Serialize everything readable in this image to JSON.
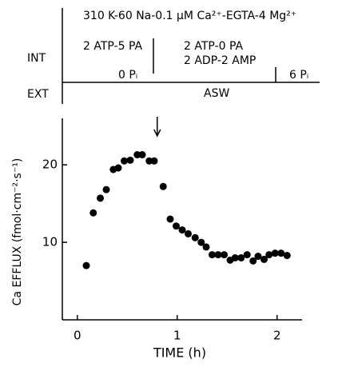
{
  "protocol": {
    "solution": "310 K-60 Na-0.1 μM Ca²⁺-EGTA-4 Mg²⁺",
    "int": "INT",
    "ext": "EXT",
    "first": "2 ATP-5 PA",
    "second": [
      "2 ATP-0 PA",
      "2 ADP-2 AMP"
    ],
    "pi_first": "0 Pᵢ",
    "pi_second": "6 Pᵢ",
    "ext_solution": "ASW"
  },
  "chart_data": {
    "type": "scatter",
    "x_label": "TIME (h)",
    "y_label": "Ca EFFLUX (fmol·cm⁻²·s⁻¹)",
    "x": [
      0.09,
      0.16,
      0.23,
      0.29,
      0.36,
      0.41,
      0.47,
      0.53,
      0.6,
      0.65,
      0.72,
      0.77,
      0.86,
      0.93,
      0.99,
      1.05,
      1.11,
      1.18,
      1.24,
      1.29,
      1.35,
      1.41,
      1.47,
      1.53,
      1.58,
      1.64,
      1.7,
      1.76,
      1.81,
      1.87,
      1.92,
      1.98,
      2.04,
      2.1
    ],
    "values": [
      7,
      13.8,
      15.7,
      16.8,
      19.4,
      19.6,
      20.5,
      20.6,
      21.3,
      21.3,
      20.5,
      20.5,
      17.2,
      13,
      12.1,
      11.6,
      11.1,
      10.6,
      10,
      9.4,
      8.4,
      8.4,
      8.4,
      7.7,
      8,
      8,
      8.4,
      7.6,
      8.2,
      7.8,
      8.4,
      8.6,
      8.6,
      8.3
    ],
    "color": "#000000",
    "arrow_x": 0.8,
    "xlim": [
      -0.15,
      2.25
    ],
    "ylim": [
      0,
      26
    ],
    "xticks": [
      0,
      1,
      2
    ],
    "yticks": [
      10,
      20
    ]
  }
}
